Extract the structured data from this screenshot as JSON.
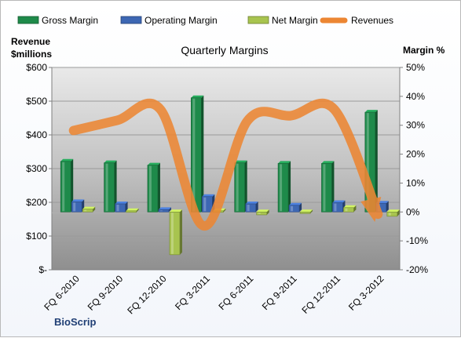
{
  "chart_data": {
    "type": "bar",
    "title": "Quarterly Margins",
    "brand": "BioScrip",
    "y_left_label": [
      "Revenue",
      "$millions"
    ],
    "y_right_label": "Margin %",
    "y_left_ticks": [
      "$600",
      "$500",
      "$400",
      "$300",
      "$200",
      "$100",
      "$-"
    ],
    "y_left_range": [
      0,
      600
    ],
    "y_right_ticks": [
      "50%",
      "40%",
      "30%",
      "20%",
      "10%",
      "0%",
      "-10%",
      "-20%"
    ],
    "y_right_range": [
      -20,
      50
    ],
    "categories": [
      "FQ 6-2010",
      "FQ 9-2010",
      "FQ 12-2010",
      "FQ 3-2011",
      "FQ 6-2011",
      "FQ 9-2011",
      "FQ 12-2011",
      "FQ 3-2012"
    ],
    "series": [
      {
        "name": "Gross Margin",
        "kind": "bar",
        "axis": "right",
        "color": "#1e8a4a",
        "values": [
          17.5,
          17.0,
          16.2,
          39.5,
          17.0,
          16.8,
          16.8,
          34.5
        ]
      },
      {
        "name": "Operating Margin",
        "kind": "bar",
        "axis": "right",
        "color": "#3d67b3",
        "values": [
          3.5,
          2.8,
          0.8,
          5.3,
          2.8,
          2.3,
          3.2,
          3.0
        ]
      },
      {
        "name": "Net Margin",
        "kind": "bar",
        "axis": "right",
        "color": "#a8c44f",
        "values": [
          1.0,
          0.4,
          -14.8,
          0.4,
          -1.0,
          -0.5,
          1.5,
          -1.5
        ]
      },
      {
        "name": "Revenues",
        "kind": "line",
        "axis": "left",
        "color": "#ec8633",
        "values": [
          413,
          443,
          475,
          130,
          442,
          457,
          475,
          165
        ]
      }
    ],
    "grid": true,
    "legend_position": "top"
  }
}
